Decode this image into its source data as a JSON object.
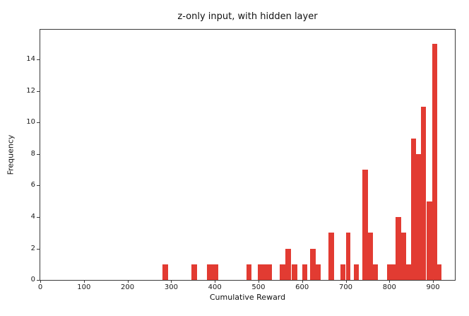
{
  "chart_data": {
    "type": "bar",
    "subtype": "histogram",
    "title": "z-only input, with hidden layer",
    "xlabel": "Cumulative Reward",
    "ylabel": "Frequency",
    "xlim": [
      0,
      950
    ],
    "ylim": [
      0,
      15.9
    ],
    "xticks": [
      0,
      100,
      200,
      300,
      400,
      500,
      600,
      700,
      800,
      900
    ],
    "yticks": [
      0,
      2,
      4,
      6,
      8,
      10,
      12,
      14
    ],
    "grid": false,
    "legend": null,
    "bar_color": "#e23b32",
    "axis_color": "#3a3a3a",
    "text_color": "#1a1a1a",
    "bars": [
      {
        "x": 280.0,
        "w": 12.8,
        "h": 1
      },
      {
        "x": 346.0,
        "w": 12.8,
        "h": 1
      },
      {
        "x": 382.0,
        "w": 12.8,
        "h": 1
      },
      {
        "x": 394.8,
        "w": 12.8,
        "h": 1
      },
      {
        "x": 472.0,
        "w": 12.8,
        "h": 1
      },
      {
        "x": 499.0,
        "w": 32.0,
        "h": 1
      },
      {
        "x": 549.0,
        "w": 12.4,
        "h": 1
      },
      {
        "x": 561.4,
        "w": 12.4,
        "h": 2
      },
      {
        "x": 576.3,
        "w": 12.4,
        "h": 1
      },
      {
        "x": 600.0,
        "w": 12.4,
        "h": 1
      },
      {
        "x": 618.4,
        "w": 12.4,
        "h": 2
      },
      {
        "x": 630.8,
        "w": 12.4,
        "h": 1
      },
      {
        "x": 660.0,
        "w": 12.8,
        "h": 3
      },
      {
        "x": 688.2,
        "w": 11.8,
        "h": 1
      },
      {
        "x": 700.0,
        "w": 11.0,
        "h": 3
      },
      {
        "x": 718.9,
        "w": 11.0,
        "h": 1
      },
      {
        "x": 738.7,
        "w": 12.4,
        "h": 7
      },
      {
        "x": 751.1,
        "w": 10.7,
        "h": 3
      },
      {
        "x": 761.8,
        "w": 12.4,
        "h": 1
      },
      {
        "x": 795.2,
        "w": 19.3,
        "h": 1
      },
      {
        "x": 814.5,
        "w": 12.0,
        "h": 4
      },
      {
        "x": 826.5,
        "w": 12.0,
        "h": 3
      },
      {
        "x": 838.5,
        "w": 11.0,
        "h": 1
      },
      {
        "x": 849.5,
        "w": 12.0,
        "h": 9
      },
      {
        "x": 861.5,
        "w": 11.0,
        "h": 8
      },
      {
        "x": 872.5,
        "w": 12.0,
        "h": 11
      },
      {
        "x": 884.5,
        "w": 13.0,
        "h": 5
      },
      {
        "x": 897.5,
        "w": 12.0,
        "h": 15
      },
      {
        "x": 909.5,
        "w": 10.0,
        "h": 1
      }
    ]
  }
}
